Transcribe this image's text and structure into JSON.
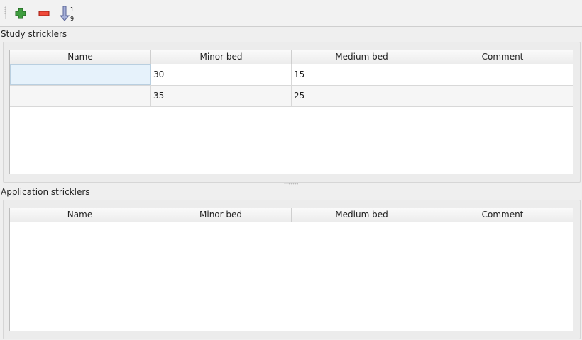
{
  "toolbar": {
    "buttons": [
      {
        "name": "add",
        "icon": "plus-icon",
        "color": "#3a9a3a"
      },
      {
        "name": "remove",
        "icon": "minus-icon",
        "color": "#e03030"
      },
      {
        "name": "sort",
        "icon": "sort-ascending-icon",
        "digits_top": "1",
        "digits_bottom": "9"
      }
    ]
  },
  "study": {
    "title": "Study stricklers",
    "columns": [
      "Name",
      "Minor bed",
      "Medium bed",
      "Comment"
    ],
    "rows": [
      [
        "",
        "30",
        "15",
        ""
      ],
      [
        "",
        "35",
        "25",
        ""
      ]
    ]
  },
  "application": {
    "title": "Application stricklers",
    "columns": [
      "Name",
      "Minor bed",
      "Medium bed",
      "Comment"
    ],
    "rows": []
  }
}
